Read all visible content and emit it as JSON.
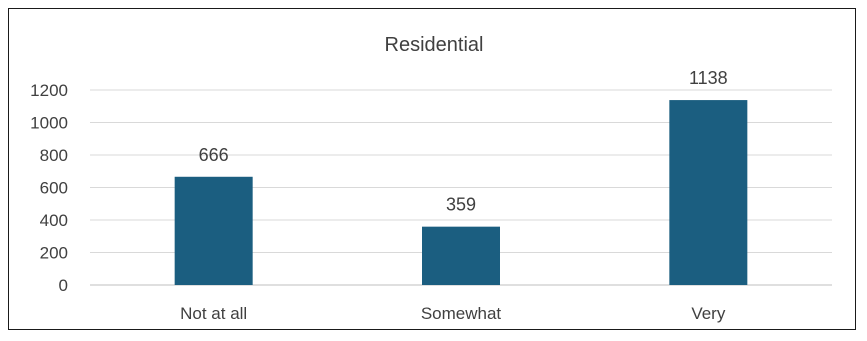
{
  "chart_data": {
    "type": "bar",
    "title": "Residential",
    "xlabel": "",
    "ylabel": "",
    "categories": [
      "Not at all",
      "Somewhat",
      "Very"
    ],
    "values": [
      666,
      359,
      1138
    ],
    "ylim": [
      0,
      1200
    ],
    "yticks": [
      "0",
      "200",
      "400",
      "600",
      "800",
      "1000",
      "1200"
    ],
    "grid": true,
    "legend": "none",
    "bar_color": "#1b5e80",
    "grid_color": "#d9d9d9",
    "text_color": "#404040"
  }
}
